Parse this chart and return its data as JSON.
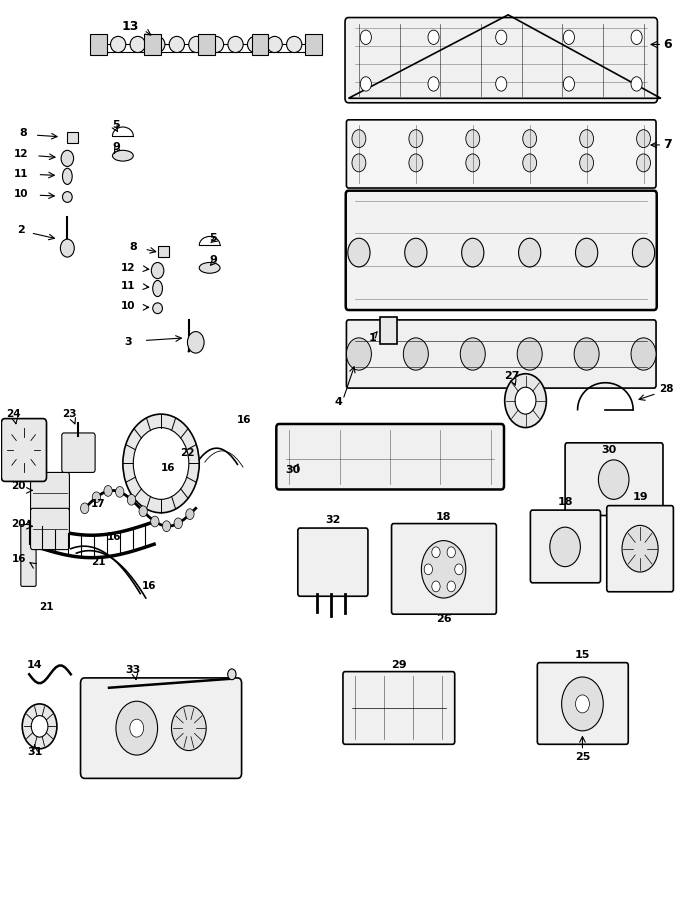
{
  "bg_color": "#ffffff",
  "line_color": "#000000",
  "fig_width": 6.97,
  "fig_height": 9.0,
  "dpi": 100
}
